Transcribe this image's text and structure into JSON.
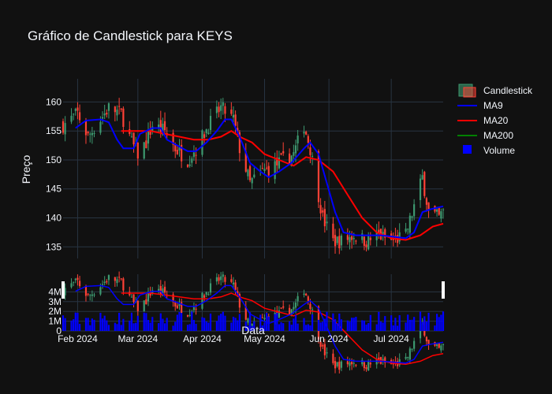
{
  "chart_data": {
    "type": "candlestick",
    "title": "Gráfico de Candlestick para KEYS",
    "xlabel": "Data",
    "ylabel": "Preço",
    "ylim": [
      133,
      164
    ],
    "volume_ylim": [
      0,
      5000000
    ],
    "x_ticks": [
      "Feb 2024",
      "Mar 2024",
      "Apr 2024",
      "May 2024",
      "Jun 2024",
      "Jul 2024"
    ],
    "x_tick_dates": [
      "2024-02-01",
      "2024-03-01",
      "2024-04-01",
      "2024-05-01",
      "2024-06-01",
      "2024-07-01"
    ],
    "y_ticks": [
      135,
      140,
      145,
      150,
      155,
      160
    ],
    "volume_ticks": [
      {
        "value": 0,
        "label": "0"
      },
      {
        "value": 1000000,
        "label": "1M"
      },
      {
        "value": 2000000,
        "label": "2M"
      },
      {
        "value": 3000000,
        "label": "3M"
      },
      {
        "value": 4000000,
        "label": "4M"
      }
    ],
    "x_range": [
      "2024-01-25",
      "2024-07-26"
    ],
    "grid": true,
    "legend_position": "right",
    "legend": [
      "Candlestick",
      "MA9",
      "MA20",
      "MA200",
      "Volume"
    ],
    "colors": {
      "increasing": "#3d9970",
      "decreasing": "#ff4136",
      "ma9": "#0000ff",
      "ma20": "#ff0000",
      "ma200": "#008000",
      "volume": "#0000ff",
      "background": "#111111",
      "grid": "#283442",
      "text": "#f2f5fa"
    },
    "close_path": [
      [
        "2024-01-25",
        156
      ],
      [
        "2024-02-01",
        158
      ],
      [
        "2024-02-06",
        154
      ],
      [
        "2024-02-12",
        157
      ],
      [
        "2024-02-16",
        159
      ],
      [
        "2024-02-22",
        158
      ],
      [
        "2024-02-27",
        153
      ],
      [
        "2024-03-01",
        151
      ],
      [
        "2024-03-05",
        153
      ],
      [
        "2024-03-08",
        156
      ],
      [
        "2024-03-14",
        155
      ],
      [
        "2024-03-19",
        152
      ],
      [
        "2024-03-25",
        150
      ],
      [
        "2024-03-29",
        152
      ],
      [
        "2024-04-04",
        156
      ],
      [
        "2024-04-10",
        159
      ],
      [
        "2024-04-16",
        157
      ],
      [
        "2024-04-19",
        152
      ],
      [
        "2024-04-24",
        146
      ],
      [
        "2024-04-30",
        148
      ],
      [
        "2024-05-06",
        149
      ],
      [
        "2024-05-10",
        150
      ],
      [
        "2024-05-15",
        151
      ],
      [
        "2024-05-20",
        156
      ],
      [
        "2024-05-23",
        152
      ],
      [
        "2024-05-29",
        140
      ],
      [
        "2024-06-03",
        136
      ],
      [
        "2024-06-07",
        136
      ],
      [
        "2024-06-13",
        137
      ],
      [
        "2024-06-19",
        136
      ],
      [
        "2024-06-25",
        137
      ],
      [
        "2024-07-01",
        136
      ],
      [
        "2024-07-08",
        137
      ],
      [
        "2024-07-12",
        142
      ],
      [
        "2024-07-16",
        147
      ],
      [
        "2024-07-19",
        141
      ],
      [
        "2024-07-24",
        140
      ],
      [
        "2024-07-26",
        141
      ]
    ],
    "ma9": [
      [
        "2024-01-31",
        155.5
      ],
      [
        "2024-02-05",
        156.8
      ],
      [
        "2024-02-12",
        157.0
      ],
      [
        "2024-02-16",
        156.5
      ],
      [
        "2024-02-20",
        153.5
      ],
      [
        "2024-02-23",
        152.0
      ],
      [
        "2024-02-28",
        152.0
      ],
      [
        "2024-03-02",
        154.5
      ],
      [
        "2024-03-08",
        155.5
      ],
      [
        "2024-03-12",
        155.5
      ],
      [
        "2024-03-15",
        153.5
      ],
      [
        "2024-03-20",
        152.5
      ],
      [
        "2024-03-25",
        151.5
      ],
      [
        "2024-03-29",
        151.5
      ],
      [
        "2024-04-03",
        153.0
      ],
      [
        "2024-04-08",
        155.0
      ],
      [
        "2024-04-12",
        157.0
      ],
      [
        "2024-04-15",
        157.0
      ],
      [
        "2024-04-19",
        154.0
      ],
      [
        "2024-04-24",
        149.5
      ],
      [
        "2024-04-29",
        148.0
      ],
      [
        "2024-05-03",
        147.0
      ],
      [
        "2024-05-08",
        148.0
      ],
      [
        "2024-05-14",
        149.5
      ],
      [
        "2024-05-20",
        152.0
      ],
      [
        "2024-05-23",
        153.0
      ],
      [
        "2024-05-27",
        151.0
      ],
      [
        "2024-05-31",
        146.0
      ],
      [
        "2024-06-04",
        141.0
      ],
      [
        "2024-06-08",
        137.5
      ],
      [
        "2024-06-14",
        137.0
      ],
      [
        "2024-06-20",
        137.0
      ],
      [
        "2024-06-26",
        137.0
      ],
      [
        "2024-07-01",
        136.8
      ],
      [
        "2024-07-08",
        136.5
      ],
      [
        "2024-07-12",
        137.5
      ],
      [
        "2024-07-16",
        141.0
      ],
      [
        "2024-07-20",
        141.5
      ],
      [
        "2024-07-26",
        142.0
      ]
    ],
    "ma20": [
      [
        "2024-02-22",
        155.0
      ],
      [
        "2024-02-29",
        155.0
      ],
      [
        "2024-03-07",
        155.0
      ],
      [
        "2024-03-14",
        154.5
      ],
      [
        "2024-03-21",
        154.0
      ],
      [
        "2024-03-28",
        153.5
      ],
      [
        "2024-04-04",
        153.5
      ],
      [
        "2024-04-10",
        154.0
      ],
      [
        "2024-04-15",
        155.0
      ],
      [
        "2024-04-19",
        154.0
      ],
      [
        "2024-04-25",
        153.0
      ],
      [
        "2024-05-01",
        151.0
      ],
      [
        "2024-05-08",
        150.0
      ],
      [
        "2024-05-15",
        149.0
      ],
      [
        "2024-05-21",
        150.5
      ],
      [
        "2024-05-27",
        150.0
      ],
      [
        "2024-06-03",
        148.0
      ],
      [
        "2024-06-10",
        144.0
      ],
      [
        "2024-06-17",
        140.0
      ],
      [
        "2024-06-24",
        137.5
      ],
      [
        "2024-07-01",
        136.5
      ],
      [
        "2024-07-08",
        136.2
      ],
      [
        "2024-07-15",
        137.0
      ],
      [
        "2024-07-21",
        138.5
      ],
      [
        "2024-07-26",
        139.0
      ]
    ]
  }
}
